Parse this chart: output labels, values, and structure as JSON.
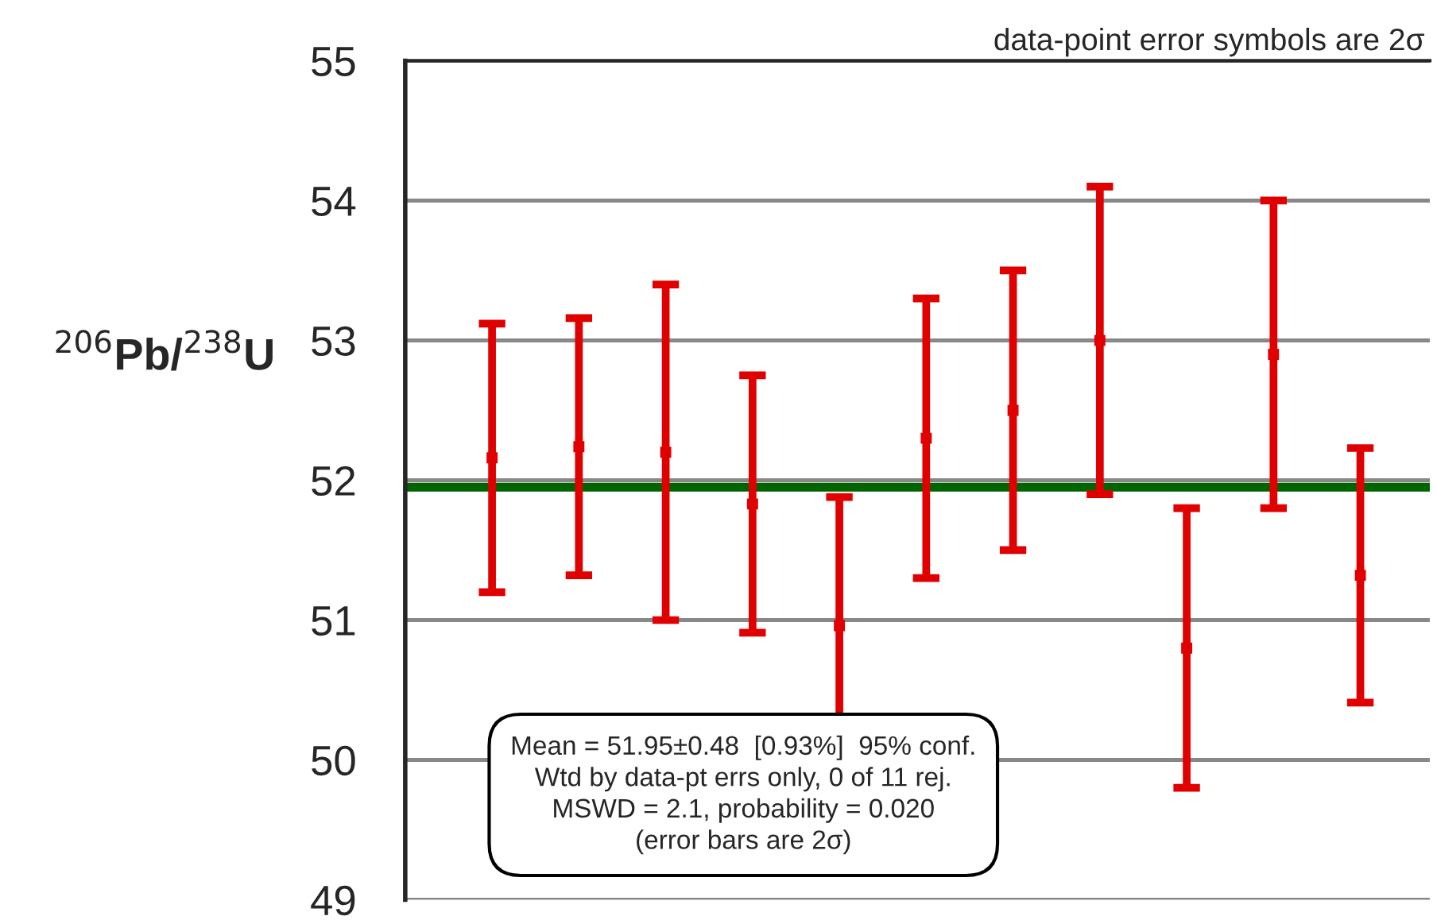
{
  "chart_data": {
    "type": "scatter",
    "ylabel": "$^{206}$Pb/$^{238}$U",
    "categories": [
      null,
      null,
      null,
      null,
      null,
      null,
      null,
      null,
      null,
      null,
      null
    ],
    "series": [
      {
        "color": "#e00000",
        "marker": "square",
        "values": [
          52.16,
          52.24,
          52.2,
          51.83,
          50.96,
          52.3,
          52.5,
          53.0,
          50.8,
          52.9,
          51.32
        ],
        "errors": [
          0.96,
          0.92,
          1.2,
          0.92,
          0.92,
          1.0,
          1.0,
          1.1,
          1.0,
          1.1,
          0.91
        ]
      }
    ],
    "ylim": [
      49,
      55
    ],
    "yticks": [
      49,
      50,
      51,
      52,
      53,
      54,
      55
    ],
    "grid": "y",
    "tick_labels": "y",
    "ref_lines": [
      {
        "axis": "y",
        "value": 51.95,
        "color": "#006400"
      }
    ],
    "annotations": [
      "data-point error symbols are 2σ",
      "Mean = 51.95±0.48  [0.93%]  95% conf.\nWtd by data-pt errs only, 0 of 11 rej.\nMSWD = 2.1, probability = 0.020\n(error bars are 2σ)"
    ]
  }
}
